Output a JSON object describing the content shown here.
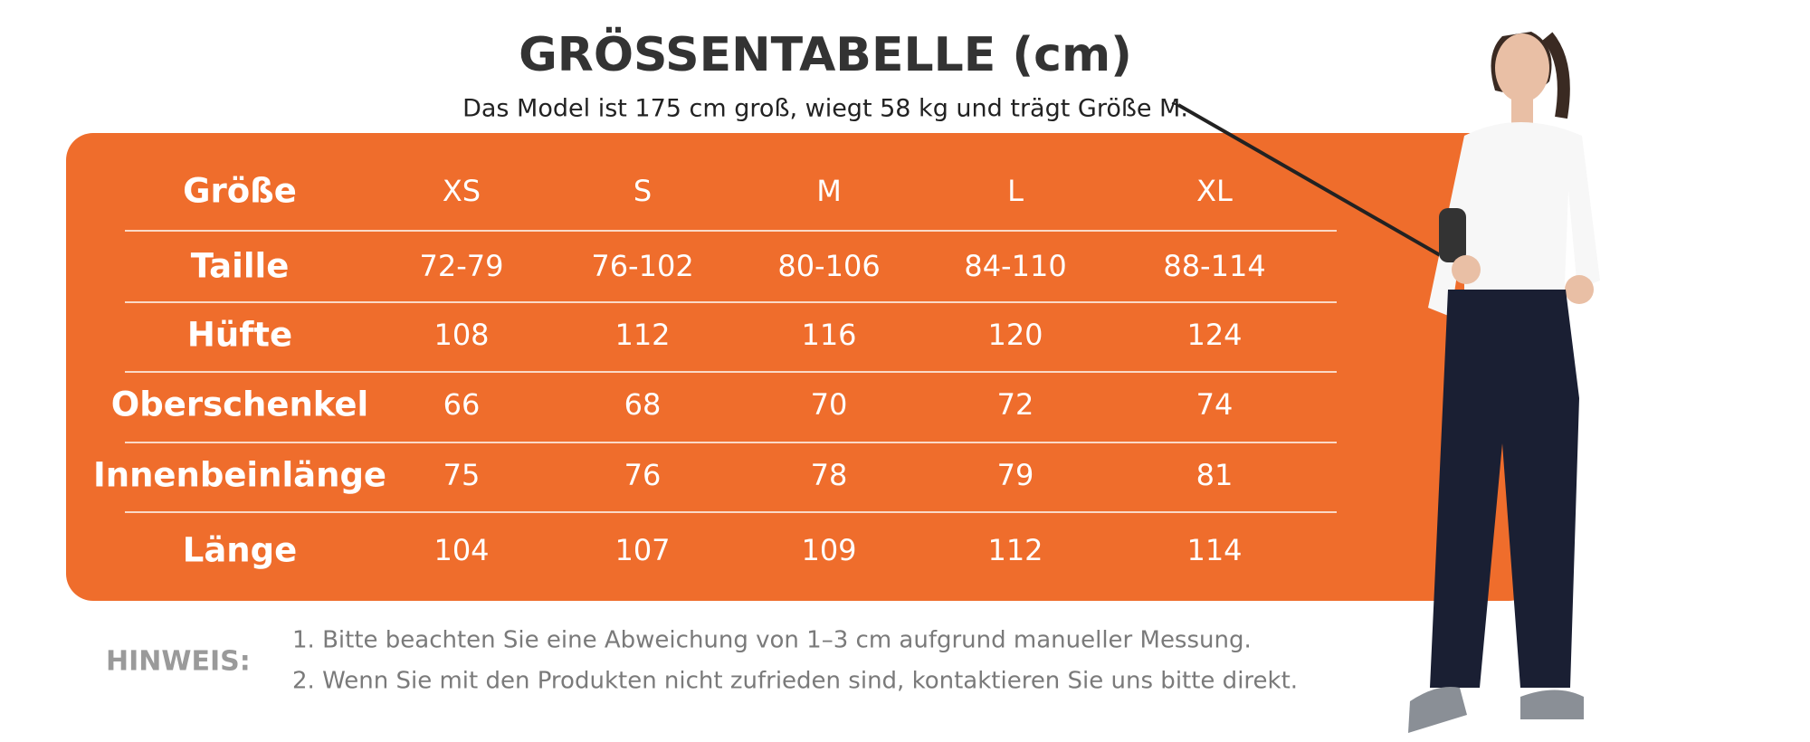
{
  "header": {
    "title": "GRÖSSENTABELLE (cm)",
    "subtitle": "Das Model ist 175 cm groß, wiegt 58 kg und trägt Größe M."
  },
  "table": {
    "header": [
      "Größe",
      "XS",
      "S",
      "M",
      "L",
      "XL"
    ],
    "rows": [
      [
        "Taille",
        "72-79",
        "76-102",
        "80-106",
        "84-110",
        "88-114"
      ],
      [
        "Hüfte",
        "108",
        "112",
        "116",
        "120",
        "124"
      ],
      [
        "Oberschenkel",
        "66",
        "68",
        "70",
        "72",
        "74"
      ],
      [
        "Innenbeinlänge",
        "75",
        "76",
        "78",
        "79",
        "81"
      ],
      [
        "Länge",
        "104",
        "107",
        "109",
        "112",
        "114"
      ]
    ]
  },
  "note": {
    "label": "HINWEIS:",
    "lines": [
      "1. Bitte beachten Sie eine Abweichung von 1–3 cm aufgrund manueller Messung.",
      "2. Wenn Sie mit den Produkten nicht zufrieden sind, kontaktieren Sie uns bitte direkt."
    ]
  }
}
